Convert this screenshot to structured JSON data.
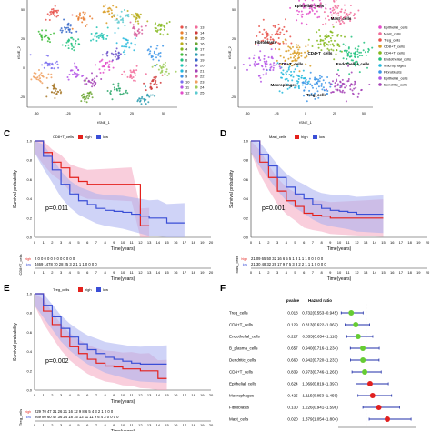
{
  "colors": {
    "high": "#e4211c",
    "low": "#3a4ed6",
    "high_band": "#f4a6c0",
    "low_band": "#a8aef0",
    "dot_green": "#66cc33",
    "dot_red": "#e02020",
    "bar_blue": "#1f2ea8"
  },
  "panelA": {
    "xlabel": "tSNE_1",
    "ylabel": "tSNE_2",
    "xticks": [
      "-50",
      "-25",
      "0",
      "25",
      "50"
    ],
    "yticks": [
      "50",
      "25",
      "0",
      "-25"
    ],
    "legend_col1": [
      "0",
      "1",
      "2",
      "3",
      "4",
      "5",
      "6",
      "7",
      "8",
      "9",
      "10",
      "11",
      "12"
    ],
    "legend_col2": [
      "13",
      "14",
      "15",
      "16",
      "17",
      "18",
      "19",
      "20",
      "21",
      "22",
      "23",
      "24",
      "25"
    ],
    "palette": [
      "#e8514a",
      "#e97d2f",
      "#d99c22",
      "#b9ad1a",
      "#84b81c",
      "#3fbd3b",
      "#21c27e",
      "#1fc3b3",
      "#22b7dc",
      "#3b94e8",
      "#7a6ff0",
      "#b454e6",
      "#e24bc9",
      "#f26b9a",
      "#cf3a3a",
      "#a8792a",
      "#6aa530",
      "#2aa76a",
      "#2b9cb0",
      "#3567c8",
      "#6a4fc9",
      "#a340b5",
      "#d7609d",
      "#f0a060",
      "#9ecb5a",
      "#5ccad0"
    ]
  },
  "panelB": {
    "xlabel": "tSNE_1",
    "ylabel": "tSNE_2",
    "xticks": [
      "-50",
      "-25",
      "0",
      "25",
      "50"
    ],
    "yticks": [
      "50",
      "25",
      "0",
      "-25"
    ],
    "legend": [
      {
        "label": "Epithelial_cells",
        "color": "#e24bc9"
      },
      {
        "label": "Mast_cells",
        "color": "#f26b9a"
      },
      {
        "label": "Treg_cells",
        "color": "#e8514a"
      },
      {
        "label": "CD8+T_cells",
        "color": "#d99c22"
      },
      {
        "label": "CD4+T_cells",
        "color": "#84b81c"
      },
      {
        "label": "Endothelial_cells",
        "color": "#21c27e"
      },
      {
        "label": "Macrophages",
        "color": "#22b7dc"
      },
      {
        "label": "Fibroblasts",
        "color": "#3b94e8"
      },
      {
        "label": "Epithelial_cells",
        "color": "#b454e6"
      },
      {
        "label": "Dendritic_cells",
        "color": "#a340b5"
      }
    ],
    "cluster_labels": [
      "Epithelial_cells",
      "Mast_cells",
      "Fibroblasts",
      "CD8+T_cells",
      "CD4+T_cells",
      "Endothelial_cells",
      "Macrophages",
      "Treg_cells"
    ]
  },
  "km_common": {
    "ylabel": "Survival probability",
    "xlabel": "Time(years)",
    "yticks": [
      "0.0",
      "0.2",
      "0.4",
      "0.6",
      "0.8",
      "1.0"
    ],
    "xticks": [
      "0",
      "1",
      "2",
      "3",
      "4",
      "5",
      "6",
      "7",
      "8",
      "9",
      "10",
      "11",
      "12",
      "13",
      "14",
      "15",
      "16",
      "17",
      "18",
      "19",
      "20"
    ],
    "legend_high": "high",
    "legend_low": "low"
  },
  "chart_data": [
    {
      "type": "line",
      "panel": "C",
      "legend_title": "CD8+T_cells",
      "pvalue": "p=0.011",
      "risk_ylabel": "CD8+T_cells",
      "risk_high": "2 0 0 0 0 0 0 0 0 0 0 0 0",
      "risk_low": "4469 1478 70 28 25 3 2 1 1 1 0 0 0 0",
      "x": [
        0,
        1,
        2,
        3,
        4,
        5,
        6,
        7,
        8,
        9,
        10,
        11,
        12,
        13,
        14,
        15,
        16,
        17
      ],
      "series": [
        {
          "name": "high",
          "values": [
            1.0,
            0.88,
            0.78,
            0.72,
            0.62,
            0.58,
            0.55,
            0.55,
            0.55,
            0.55,
            0.55,
            0.55,
            0.12,
            0.12,
            null,
            null,
            null,
            null
          ]
        },
        {
          "name": "low",
          "values": [
            1.0,
            0.84,
            0.7,
            0.55,
            0.45,
            0.38,
            0.34,
            0.3,
            0.28,
            0.27,
            0.26,
            0.24,
            0.22,
            0.2,
            0.2,
            0.15,
            0.15,
            0.15
          ]
        }
      ],
      "xlim": [
        0,
        20
      ],
      "ylim": [
        0,
        1
      ]
    },
    {
      "type": "line",
      "panel": "D",
      "legend_title": "Mast_cells",
      "pvalue": "p=0.001",
      "risk_ylabel": "Mast_cells",
      "risk_high": "21 09 65 50 32 16 6 5 5 1 3 1 1 1 0 0 0 0 0",
      "risk_low": "21 30 48 32 29 17 9 7 5 3 3 2 2 1 1 1 0 0 0 0",
      "x": [
        0,
        1,
        2,
        3,
        4,
        5,
        6,
        7,
        8,
        9,
        10,
        11,
        12,
        13,
        14,
        15
      ],
      "series": [
        {
          "name": "high",
          "values": [
            1.0,
            0.78,
            0.62,
            0.48,
            0.38,
            0.32,
            0.25,
            0.23,
            0.22,
            0.2,
            0.2,
            0.2,
            0.2,
            0.2,
            0.2,
            0.2
          ]
        },
        {
          "name": "low",
          "values": [
            1.0,
            0.86,
            0.74,
            0.62,
            0.52,
            0.45,
            0.4,
            0.34,
            0.3,
            0.28,
            0.27,
            0.26,
            0.24,
            0.24,
            0.24,
            0.24
          ]
        }
      ],
      "xlim": [
        0,
        20
      ],
      "ylim": [
        0,
        1
      ]
    },
    {
      "type": "line",
      "panel": "E",
      "legend_title": "Treg_cells",
      "pvalue": "p=0.002",
      "risk_ylabel": "Treg_cells",
      "risk_high": "229 70 47 31 26 21 16 12 9 8 6 5 4 3 2 1 0 0 0",
      "risk_low": "269 80 60 47 36 24 18 15 13 11 11 9 6 4 3 0 0 0 0",
      "x": [
        0,
        1,
        2,
        3,
        4,
        5,
        6,
        7,
        8,
        9,
        10,
        11,
        12,
        13,
        14,
        15
      ],
      "series": [
        {
          "name": "high",
          "values": [
            1.0,
            0.82,
            0.68,
            0.55,
            0.45,
            0.38,
            0.32,
            0.28,
            0.25,
            0.24,
            0.22,
            0.22,
            0.2,
            0.2,
            0.12,
            0.12
          ]
        },
        {
          "name": "low",
          "values": [
            1.0,
            0.88,
            0.76,
            0.64,
            0.55,
            0.48,
            0.42,
            0.38,
            0.34,
            0.32,
            0.3,
            0.28,
            0.27,
            0.27,
            0.27,
            0.27
          ]
        }
      ],
      "xlim": [
        0,
        20
      ],
      "ylim": [
        0,
        1
      ]
    },
    {
      "type": "scatter",
      "panel": "F",
      "col_pvalue": "pvalue",
      "col_hr": "Hazard ratio",
      "rows": [
        {
          "name": "Treg_cells",
          "p": "0.018",
          "hr_text": "0.732(0.553−0.945)",
          "hr": 0.732,
          "lo": 0.553,
          "hi": 0.945
        },
        {
          "name": "CD8+T_cells",
          "p": "0.129",
          "hr_text": "0.813(0.622−1.062)",
          "hr": 0.813,
          "lo": 0.622,
          "hi": 1.062
        },
        {
          "name": "Endothelial_cells",
          "p": "0.227",
          "hr_text": "0.855(0.654−1.118)",
          "hr": 0.855,
          "lo": 0.654,
          "hi": 1.118
        },
        {
          "name": "B_plasma_cells",
          "p": "0.657",
          "hr_text": "0.940(0.716−1.234)",
          "hr": 0.94,
          "lo": 0.716,
          "hi": 1.234
        },
        {
          "name": "Dendritic_cells",
          "p": "0.660",
          "hr_text": "0.942(0.720−1.231)",
          "hr": 0.942,
          "lo": 0.72,
          "hi": 1.231
        },
        {
          "name": "CD4+T_cells",
          "p": "0.839",
          "hr_text": "0.973(0.746−1.269)",
          "hr": 0.973,
          "lo": 0.746,
          "hi": 1.269
        },
        {
          "name": "Epithelial_cells",
          "p": "0.624",
          "hr_text": "1.069(0.819−1.397)",
          "hr": 1.069,
          "lo": 0.819,
          "hi": 1.397
        },
        {
          "name": "Macrophages",
          "p": "0.425",
          "hr_text": "1.115(0.853−1.456)",
          "hr": 1.115,
          "lo": 0.853,
          "hi": 1.456
        },
        {
          "name": "Fibroblasts",
          "p": "0.130",
          "hr_text": "1.226(0.941−1.598)",
          "hr": 1.226,
          "lo": 0.941,
          "hi": 1.598
        },
        {
          "name": "Mast_cells",
          "p": "0.020",
          "hr_text": "1.379(1.054−1.804)",
          "hr": 1.379,
          "lo": 1.054,
          "hi": 1.804
        }
      ],
      "xlim": [
        0.5,
        1.9
      ]
    }
  ],
  "panel_letters": [
    "C",
    "D",
    "E",
    "F"
  ]
}
